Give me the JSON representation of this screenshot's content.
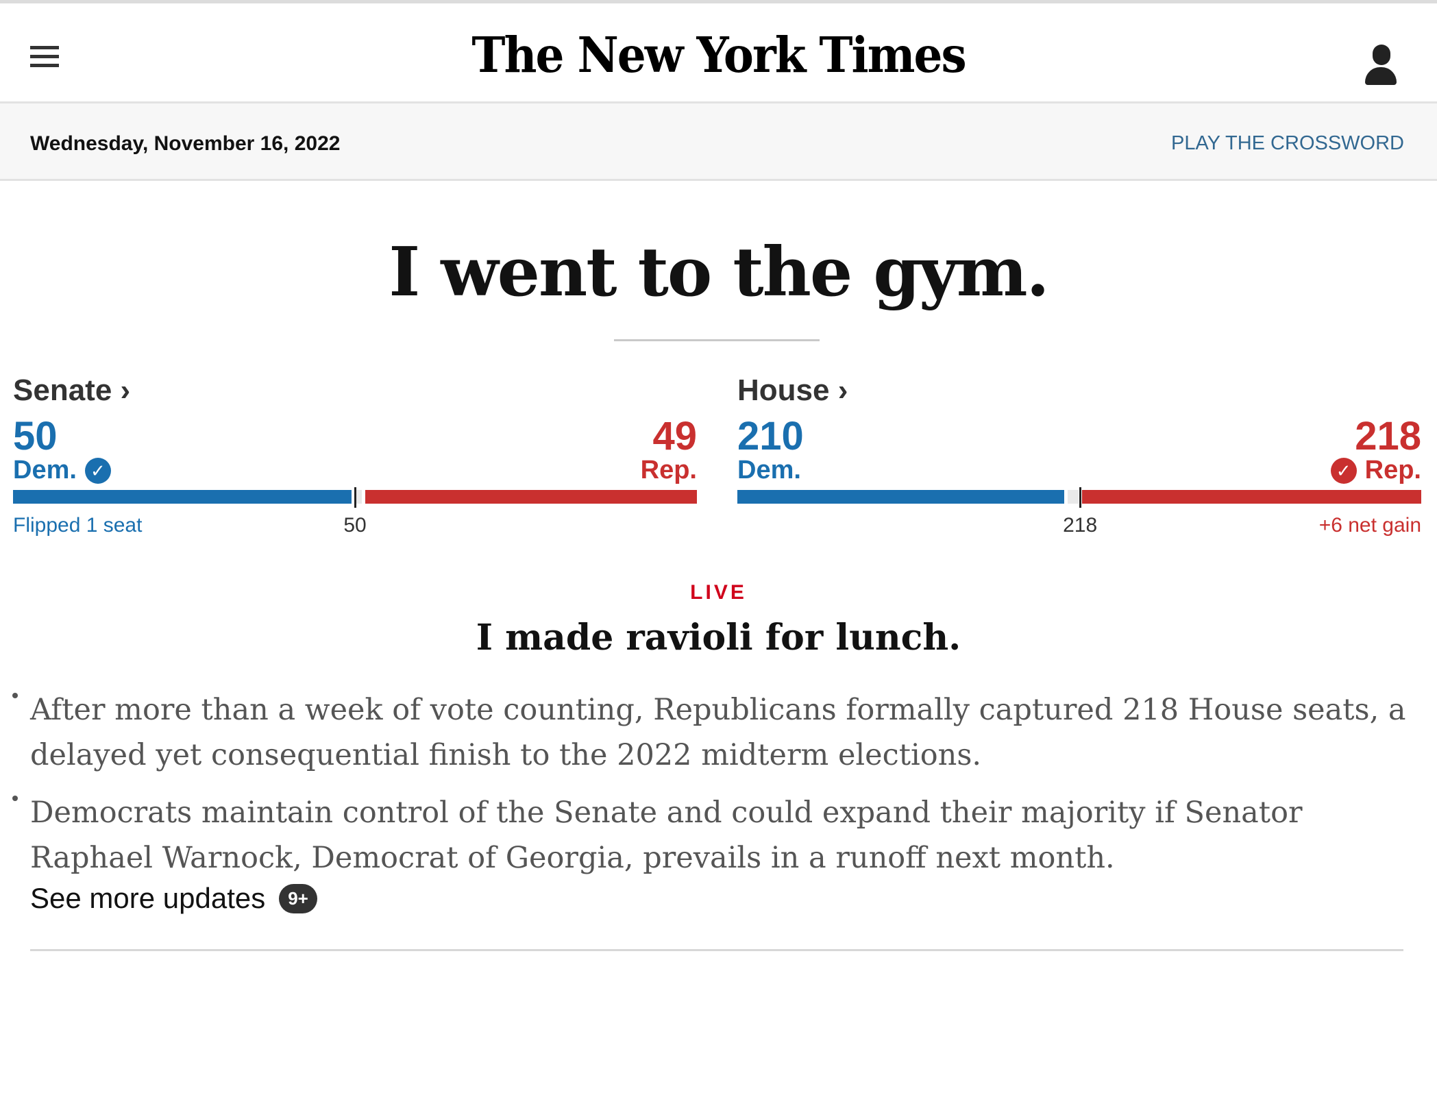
{
  "header": {
    "logo_text": "The New York Times",
    "date": "Wednesday, November 16, 2022",
    "crossword_link": "PLAY THE CROSSWORD"
  },
  "headline": "I went to the gym.",
  "senate": {
    "title": "Senate ›",
    "dem_count": "50",
    "dem_label": "Dem.",
    "rep_count": "49",
    "rep_label": "Rep.",
    "dem_seats": 50,
    "rep_seats": 49,
    "majority_label": "50",
    "note": "Flipped 1 seat",
    "winner": "dem"
  },
  "house": {
    "title": "House ›",
    "dem_count": "210",
    "dem_label": "Dem.",
    "rep_count": "218",
    "rep_label": "Rep.",
    "dem_seats": 210,
    "rep_seats": 218,
    "majority_label": "218",
    "note": "+6 net gain",
    "winner": "rep"
  },
  "live": {
    "label": "LIVE",
    "title": "I made ravioli for lunch.",
    "bullets": [
      "After more than a week of vote counting, Republicans formally captured 218 House seats, a delayed yet consequential finish to the 2022 midterm elections.",
      "Democrats maintain control of the Senate and could expand their majority if Senator Raphael Warnock, Democrat of Georgia, prevails in a runoff next month."
    ],
    "see_more": "See more updates",
    "badge": "9+"
  },
  "colors": {
    "dem": "#1a6faf",
    "rep": "#c9302f",
    "undecided": "#e9e9e9",
    "link": "#326891",
    "live": "#d0021b"
  },
  "icons": {
    "menu": "hamburger-menu-icon",
    "account": "user-account-icon",
    "dem_winner": "check-circle-icon",
    "rep_winner": "check-circle-icon"
  }
}
